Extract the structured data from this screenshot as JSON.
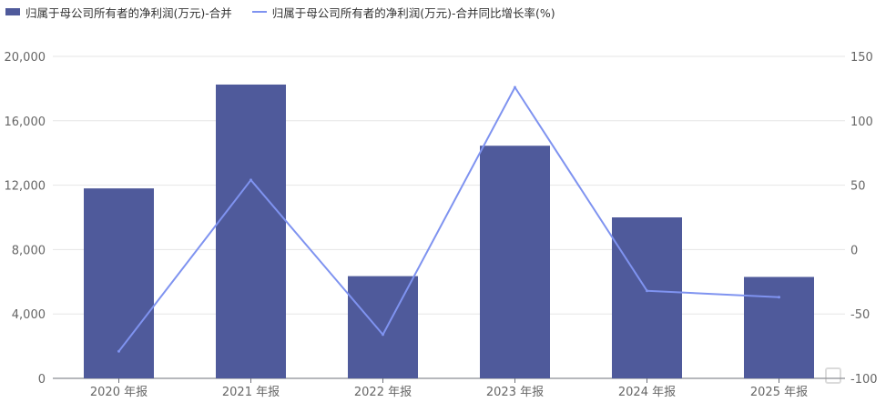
{
  "chart_data": {
    "type": "bar",
    "categories": [
      "2020 年报",
      "2021 年报",
      "2022 年报",
      "2023 年报",
      "2024 年报",
      "2025 年报"
    ],
    "series": [
      {
        "name": "归属于母公司所有者的净利润(万元)-合并",
        "type": "bar",
        "axis": "left",
        "color": "#4f5a9b",
        "values": [
          11800,
          18250,
          6350,
          14450,
          10000,
          6300
        ]
      },
      {
        "name": "归属于母公司所有者的净利润(万元)-合并同比增长率(%)",
        "type": "line",
        "axis": "right",
        "color": "#7f93f0",
        "values": [
          -79,
          54,
          -66,
          126,
          -32,
          -37
        ]
      }
    ],
    "y_left": {
      "min": 0,
      "max": 20000,
      "ticks": [
        "0",
        "4,000",
        "8,000",
        "12,000",
        "16,000",
        "20,000"
      ]
    },
    "y_right": {
      "min": -100,
      "max": 150,
      "ticks": [
        "-100",
        "-50",
        "0",
        "50",
        "100",
        "150"
      ]
    },
    "grid": true,
    "legend_position": "top-left"
  }
}
